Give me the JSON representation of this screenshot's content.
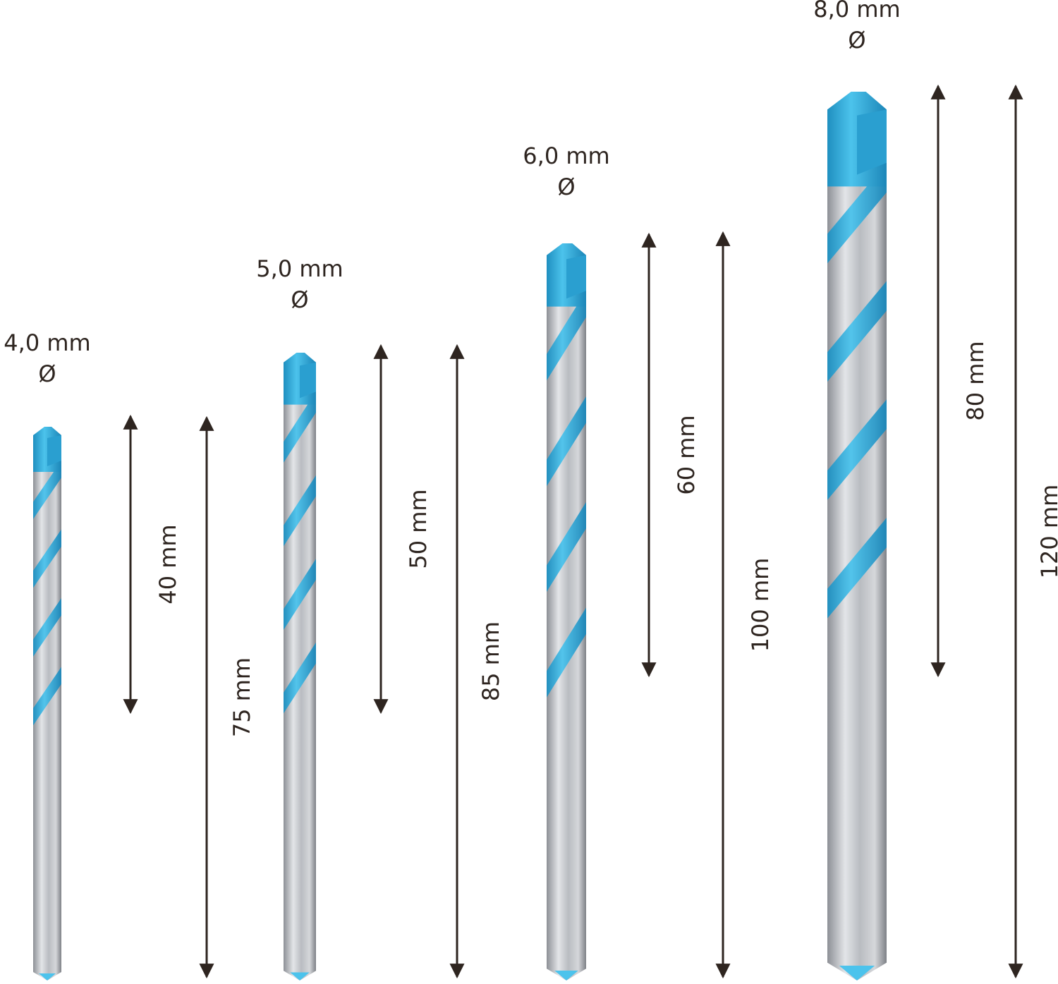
{
  "drills": [
    {
      "diameter": "4,0 mm",
      "symbol": "Ø",
      "working_length": "40 mm",
      "total_length": "75 mm"
    },
    {
      "diameter": "5,0 mm",
      "symbol": "Ø",
      "working_length": "50 mm",
      "total_length": "85 mm"
    },
    {
      "diameter": "6,0 mm",
      "symbol": "Ø",
      "working_length": "60 mm",
      "total_length": "100 mm"
    },
    {
      "diameter": "8,0 mm",
      "symbol": "Ø",
      "working_length": "80 mm",
      "total_length": "120 mm"
    }
  ]
}
